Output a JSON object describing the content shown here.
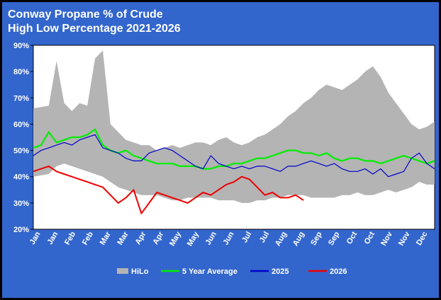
{
  "chart_data": {
    "type": "line",
    "title": "Conway Propane % of Crude",
    "subtitle": "High Low Percentage 2021-2026",
    "xlabel": "",
    "ylabel": "",
    "ylim": [
      20,
      90
    ],
    "y_ticks": [
      "20%",
      "30%",
      "40%",
      "50%",
      "60%",
      "70%",
      "80%",
      "90%"
    ],
    "x_ticks": [
      "Jan",
      "Jan",
      "Feb",
      "Feb",
      "Mar",
      "Mar",
      "Apr",
      "Apr",
      "May",
      "May",
      "Jun",
      "Jun",
      "Jul",
      "Jul",
      "Aug",
      "Aug",
      "Sep",
      "Sep",
      "Oct",
      "Oct",
      "Nov",
      "Nov",
      "Dec"
    ],
    "legend_position": "bottom",
    "grid": false,
    "colors": {
      "background": "#3366cc",
      "plot_area": "#ffffff",
      "hilo": "#b4b4b4",
      "avg5": "#00ee00",
      "y2025": "#0000cc",
      "y2026": "#ee0000"
    },
    "legend": [
      "HiLo",
      "5 Year Average",
      "2025",
      "2026"
    ],
    "series": [
      {
        "name": "HiLo",
        "kind": "band",
        "x": [
          0,
          2,
          3,
          4,
          5,
          6,
          7,
          8,
          9,
          10,
          11,
          12,
          13,
          14,
          15,
          16,
          17,
          18,
          19,
          20,
          21,
          22
        ],
        "high": [
          66,
          67,
          84,
          68,
          65,
          68,
          67,
          85,
          88,
          60,
          57,
          54,
          53,
          52,
          52,
          50,
          51,
          52,
          51,
          52,
          53,
          53
        ],
        "low": [
          40,
          41,
          44,
          45,
          44,
          43,
          42,
          41,
          40,
          38,
          36,
          35,
          34,
          33,
          33,
          33,
          32,
          31,
          31,
          32,
          32,
          32
        ],
        "x2": [
          23,
          24,
          25,
          26,
          27,
          28,
          29,
          30,
          31,
          32,
          33,
          34,
          35,
          36,
          37,
          38,
          39,
          40,
          41,
          42,
          43,
          44,
          45,
          46,
          47,
          48,
          49,
          50,
          51,
          52
        ],
        "high2": [
          52,
          54,
          55,
          53,
          52,
          53,
          55,
          56,
          58,
          60,
          63,
          65,
          68,
          70,
          73,
          75,
          74,
          73,
          75,
          77,
          80,
          82,
          78,
          72,
          68,
          64,
          60,
          58,
          59,
          61
        ],
        "low2": [
          32,
          31,
          31,
          31,
          30,
          30,
          31,
          31,
          32,
          32,
          33,
          33,
          33,
          32,
          32,
          32,
          32,
          33,
          33,
          34,
          33,
          33,
          34,
          35,
          34,
          35,
          36,
          38,
          37,
          37
        ]
      },
      {
        "name": "5 Year Average",
        "x": [
          0,
          1,
          2,
          3,
          4,
          5,
          6,
          7,
          8,
          9,
          10,
          11,
          12,
          13,
          14,
          15,
          16,
          17,
          18,
          19,
          20,
          21,
          22,
          23,
          24,
          25,
          26,
          27,
          28,
          29,
          30,
          31,
          32,
          33,
          34,
          35,
          36,
          37,
          38,
          39,
          40,
          41,
          42,
          43,
          44,
          45,
          46,
          47,
          48,
          49,
          50,
          51,
          52
        ],
        "values": [
          51,
          52,
          57,
          53,
          54,
          55,
          55,
          56,
          58,
          52,
          50,
          49,
          50,
          48,
          47,
          46,
          45,
          45,
          45,
          44,
          44,
          44,
          43,
          43,
          44,
          44,
          45,
          45,
          46,
          47,
          47,
          48,
          49,
          50,
          50,
          49,
          49,
          48,
          49,
          47,
          46,
          47,
          47,
          46,
          46,
          45,
          46,
          47,
          48,
          47,
          46,
          45,
          46
        ]
      },
      {
        "name": "2025",
        "x": [
          0,
          1,
          2,
          3,
          4,
          5,
          6,
          7,
          8,
          9,
          10,
          11,
          12,
          13,
          14,
          15,
          16,
          17,
          18,
          19,
          20,
          21,
          22,
          23,
          24,
          25,
          26,
          27,
          28,
          29,
          30,
          31,
          32,
          33,
          34,
          35,
          36,
          37,
          38,
          39,
          40,
          41,
          42,
          43,
          44,
          45,
          46,
          47,
          48,
          49,
          50,
          51,
          52
        ],
        "values": [
          48,
          50,
          51,
          52,
          53,
          52,
          54,
          55,
          56,
          51,
          50,
          49,
          47,
          46,
          46,
          49,
          50,
          51,
          50,
          48,
          46,
          44,
          43,
          48,
          45,
          44,
          43,
          44,
          43,
          44,
          44,
          43,
          42,
          44,
          44,
          45,
          46,
          45,
          44,
          45,
          43,
          42,
          42,
          43,
          41,
          43,
          40,
          41,
          42,
          47,
          49,
          45,
          43
        ]
      },
      {
        "name": "2026",
        "x": [
          0,
          1,
          2,
          3,
          4,
          5,
          6,
          7,
          8,
          9,
          10,
          11,
          12,
          13,
          14,
          15,
          16,
          17,
          18,
          19,
          20,
          21,
          22,
          23,
          24,
          25,
          26,
          27,
          28,
          29,
          30,
          31,
          32,
          33,
          34,
          35
        ],
        "values": [
          42,
          43,
          44,
          42,
          41,
          40,
          39,
          38,
          37,
          36,
          33,
          30,
          32,
          35,
          26,
          30,
          34,
          33,
          32,
          31,
          30,
          32,
          34,
          33,
          35,
          37,
          38,
          40,
          39,
          36,
          33,
          34,
          32,
          32,
          33,
          31
        ]
      }
    ]
  }
}
